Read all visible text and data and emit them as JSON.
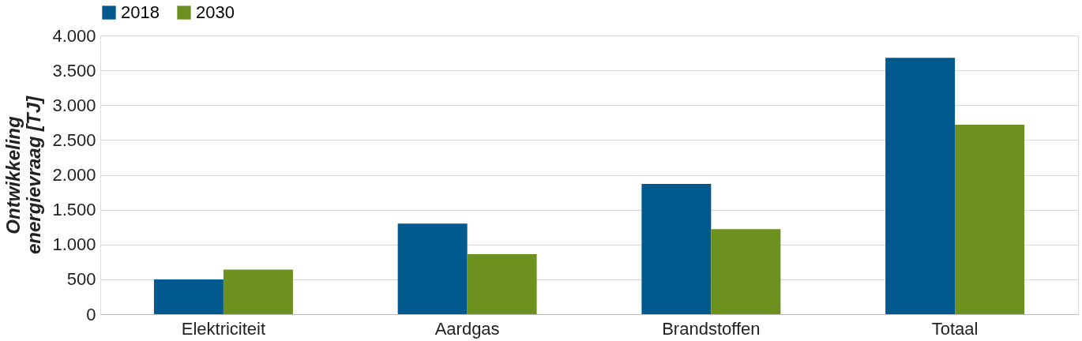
{
  "chart_data": {
    "type": "bar",
    "ylabel": "Ontwikkeling\nenergievraag [TJ]",
    "categories": [
      "Elektriciteit",
      "Aardgas",
      "Brandstoffen",
      "Totaal"
    ],
    "series": [
      {
        "name": "2018",
        "color": "#015a8e",
        "values": [
          500,
          1300,
          1870,
          3680
        ]
      },
      {
        "name": "2030",
        "color": "#6c911e",
        "values": [
          640,
          860,
          1220,
          2720
        ]
      }
    ],
    "ylim": [
      0,
      4000
    ],
    "yticks": [
      {
        "value": 0,
        "label": "0"
      },
      {
        "value": 500,
        "label": "500"
      },
      {
        "value": 1000,
        "label": "1.000"
      },
      {
        "value": 1500,
        "label": "1.500"
      },
      {
        "value": 2000,
        "label": "2.000"
      },
      {
        "value": 2500,
        "label": "2.500"
      },
      {
        "value": 3000,
        "label": "3.000"
      },
      {
        "value": 3500,
        "label": "3.500"
      },
      {
        "value": 4000,
        "label": "4.000"
      }
    ],
    "grid": "y",
    "legend": "top"
  }
}
